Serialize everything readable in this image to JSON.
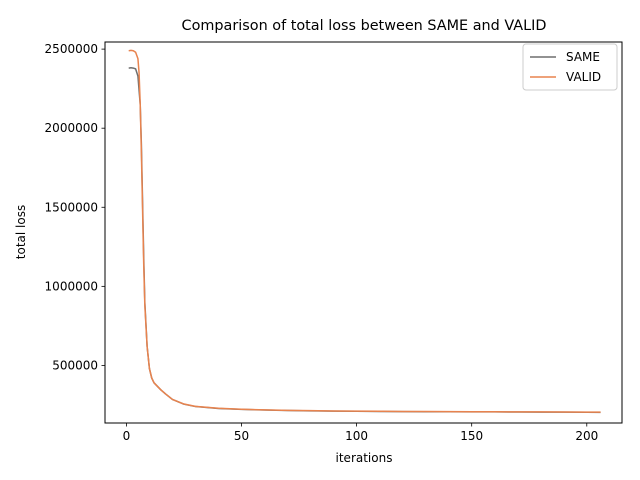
{
  "chart_data": {
    "type": "line",
    "title": "Comparison of total loss between SAME and VALID",
    "xlabel": "iterations",
    "ylabel": "total loss",
    "xlim": [
      -9.3,
      215.3
    ],
    "ylim": [
      136000,
      2545000
    ],
    "xticks": [
      0,
      50,
      100,
      150,
      200
    ],
    "xtick_labels": [
      "0",
      "50",
      "100",
      "150",
      "200"
    ],
    "yticks": [
      500000,
      1000000,
      1500000,
      2000000,
      2500000
    ],
    "ytick_labels": [
      "500000",
      "1000000",
      "1500000",
      "2000000",
      "2500000"
    ],
    "grid": false,
    "legend_position": "top-right",
    "series": [
      {
        "name": "SAME",
        "color": "#6f6f6f",
        "x": [
          1,
          2,
          3,
          4,
          5,
          6,
          6.5,
          7,
          7.5,
          8,
          9,
          10,
          11,
          12,
          13,
          14,
          15,
          17,
          20,
          25,
          30,
          40,
          50,
          60,
          70,
          80,
          90,
          100,
          110,
          120,
          130,
          140,
          150,
          160,
          170,
          180,
          190,
          200,
          206
        ],
        "y": [
          2380000,
          2382000,
          2380000,
          2375000,
          2330000,
          2150000,
          1900000,
          1550000,
          1200000,
          900000,
          620000,
          480000,
          420000,
          390000,
          375000,
          360000,
          345000,
          320000,
          285000,
          255000,
          240000,
          228000,
          222000,
          218000,
          215000,
          213000,
          211000,
          210000,
          209000,
          208000,
          207500,
          207000,
          206500,
          206000,
          205500,
          205000,
          204500,
          204000,
          203500
        ]
      },
      {
        "name": "VALID",
        "color": "#e8834e",
        "x": [
          1,
          2,
          3,
          4,
          5,
          5.5,
          6,
          6.5,
          7,
          7.5,
          8,
          9,
          10,
          11,
          12,
          13,
          14,
          15,
          17,
          20,
          25,
          30,
          40,
          50,
          60,
          70,
          80,
          90,
          100,
          110,
          120,
          130,
          140,
          150,
          160,
          170,
          180,
          190,
          200,
          206
        ],
        "y": [
          2490000,
          2492000,
          2490000,
          2480000,
          2440000,
          2350000,
          2150000,
          1850000,
          1500000,
          1150000,
          880000,
          620000,
          480000,
          420000,
          390000,
          375000,
          360000,
          345000,
          320000,
          285000,
          256000,
          241000,
          229000,
          223000,
          219000,
          216000,
          214000,
          212000,
          211000,
          210000,
          209000,
          208500,
          208000,
          207500,
          207000,
          206500,
          206000,
          205500,
          205000,
          204500
        ]
      }
    ]
  }
}
